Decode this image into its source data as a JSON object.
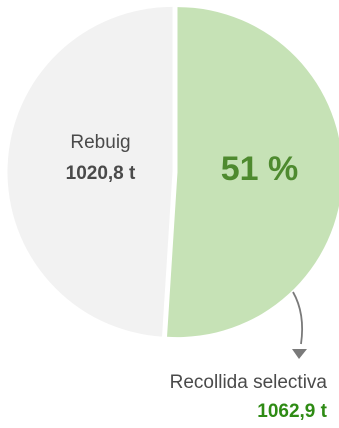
{
  "chart_data": {
    "type": "pie",
    "slices": [
      {
        "label": "Rebuig",
        "value": 1020.8,
        "value_text": "1020,8 t",
        "color": "#f2f2f2"
      },
      {
        "label": "Recollida selectiva",
        "value": 1062.9,
        "value_text": "1062,9 t",
        "color": "#c6e2b6"
      }
    ],
    "annotation": "51 %",
    "unit": "t"
  },
  "colors": {
    "text_dark": "#4a4a4a",
    "accent_green": "#4e8a2f",
    "value_green": "#2e8b14",
    "arrow": "#7a7a7a"
  }
}
